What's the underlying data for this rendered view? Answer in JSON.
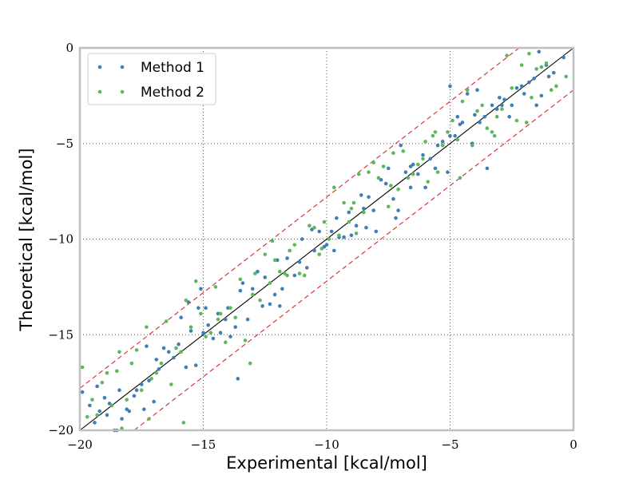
{
  "chart_data": {
    "type": "scatter",
    "xlabel": "Experimental [kcal/mol]",
    "ylabel": "Theoretical [kcal/mol]",
    "xlim": [
      -20,
      0
    ],
    "ylim": [
      -20,
      0
    ],
    "xticks": [
      -20,
      -15,
      -10,
      -5,
      0
    ],
    "yticks": [
      -20,
      -15,
      -10,
      -5,
      0
    ],
    "xtick_labels": [
      "−20",
      "−15",
      "−10",
      "−5",
      "0"
    ],
    "ytick_labels": [
      "−20",
      "−15",
      "−10",
      "−5",
      "0"
    ],
    "grid": true,
    "legend_position": "top-left",
    "colors": {
      "method1": "#3f7fb5",
      "method2": "#5cb85c",
      "identity_line": "#000000",
      "band_lines": "#d62728"
    },
    "reference_lines": {
      "identity": {
        "x": [
          -20,
          0
        ],
        "y": [
          -20,
          0
        ]
      },
      "upper_band": {
        "x": [
          -20,
          -2.2
        ],
        "y": [
          -17.8,
          0
        ]
      },
      "lower_band": {
        "x": [
          -17.8,
          0
        ],
        "y": [
          -20,
          -2.2
        ]
      }
    },
    "series": [
      {
        "name": "Method 1",
        "x": [
          -19.9,
          -19.6,
          -19.4,
          -19.3,
          -19.2,
          -19.0,
          -18.9,
          -18.8,
          -18.6,
          -18.4,
          -18.3,
          -18.1,
          -18.0,
          -17.8,
          -17.7,
          -17.5,
          -17.4,
          -17.3,
          -17.2,
          -17.0,
          -16.8,
          -16.6,
          -16.4,
          -16.2,
          -16.0,
          -15.9,
          -15.7,
          -15.6,
          -15.5,
          -15.3,
          -15.2,
          -15.0,
          -14.9,
          -14.8,
          -14.6,
          -14.4,
          -14.3,
          -14.1,
          -14.0,
          -13.9,
          -13.7,
          -13.5,
          -13.4,
          -13.2,
          -13.0,
          -12.8,
          -12.6,
          -12.5,
          -12.3,
          -12.1,
          -12.0,
          -11.8,
          -11.6,
          -11.5,
          -11.3,
          -11.1,
          -11.0,
          -10.8,
          -10.6,
          -10.5,
          -10.3,
          -10.1,
          -10.0,
          -9.8,
          -9.6,
          -9.5,
          -9.3,
          -9.1,
          -9.0,
          -8.8,
          -8.6,
          -8.5,
          -8.3,
          -8.1,
          -8.0,
          -7.8,
          -7.6,
          -7.5,
          -7.3,
          -7.1,
          -7.0,
          -6.8,
          -6.6,
          -6.5,
          -6.3,
          -6.1,
          -6.0,
          -5.8,
          -5.6,
          -5.5,
          -5.3,
          -5.1,
          -5.0,
          -4.8,
          -4.6,
          -4.5,
          -4.3,
          -4.1,
          -4.0,
          -3.8,
          -3.6,
          -3.5,
          -3.3,
          -3.1,
          -3.0,
          -2.8,
          -2.6,
          -2.5,
          -2.3,
          -2.1,
          -2.0,
          -1.8,
          -1.6,
          -1.5,
          -1.3,
          -1.1,
          -1.0,
          -0.8,
          -0.4,
          -5.0,
          -4.7,
          -3.9,
          -2.9,
          -1.4,
          -6.6,
          -7.2,
          -8.4,
          -9.7,
          -11.9,
          -13.6,
          -15.1,
          -16.9,
          -18.5
        ],
        "y": [
          -18.0,
          -18.7,
          -19.6,
          -17.7,
          -19.0,
          -18.3,
          -19.2,
          -18.6,
          -20.0,
          -17.9,
          -19.4,
          -18.9,
          -19.0,
          -18.2,
          -17.9,
          -17.6,
          -18.9,
          -15.6,
          -17.4,
          -18.5,
          -16.8,
          -15.7,
          -15.9,
          -16.2,
          -15.5,
          -14.1,
          -16.7,
          -13.3,
          -14.8,
          -16.6,
          -13.6,
          -14.9,
          -13.6,
          -14.5,
          -15.2,
          -13.9,
          -14.9,
          -14.2,
          -13.6,
          -15.1,
          -14.6,
          -12.7,
          -12.3,
          -14.2,
          -12.6,
          -11.7,
          -13.5,
          -12.0,
          -13.4,
          -12.9,
          -11.1,
          -12.6,
          -11.0,
          -10.6,
          -11.9,
          -11.2,
          -10.0,
          -11.5,
          -9.5,
          -10.6,
          -9.6,
          -10.4,
          -10.3,
          -9.6,
          -8.9,
          -9.9,
          -9.9,
          -8.6,
          -9.8,
          -9.3,
          -7.7,
          -8.4,
          -7.8,
          -8.5,
          -9.6,
          -6.9,
          -7.1,
          -6.3,
          -7.9,
          -8.5,
          -5.1,
          -6.5,
          -6.2,
          -6.1,
          -6.6,
          -5.6,
          -7.3,
          -5.8,
          -6.3,
          -5.1,
          -4.9,
          -6.5,
          -4.6,
          -4.6,
          -4.0,
          -3.9,
          -2.4,
          -5.0,
          -3.5,
          -3.9,
          -3.6,
          -6.3,
          -3.0,
          -3.2,
          -2.6,
          -2.7,
          -3.6,
          -3.0,
          -2.1,
          -2.0,
          -2.4,
          -1.8,
          -1.6,
          -3.0,
          -2.5,
          -0.9,
          -1.5,
          -1.3,
          -0.5,
          -2.0,
          -3.6,
          -2.2,
          -3.0,
          -0.2,
          -7.3,
          -8.9,
          -9.4,
          -10.6,
          -13.5,
          -17.3,
          -12.6,
          -16.3,
          -20.0
        ]
      },
      {
        "name": "Method 2",
        "x": [
          -19.9,
          -19.7,
          -19.5,
          -19.3,
          -19.1,
          -18.9,
          -18.7,
          -18.5,
          -18.3,
          -18.1,
          -17.9,
          -17.7,
          -17.5,
          -17.3,
          -17.1,
          -16.9,
          -16.7,
          -16.5,
          -16.3,
          -16.1,
          -15.9,
          -15.7,
          -15.5,
          -15.3,
          -15.1,
          -14.9,
          -14.7,
          -14.5,
          -14.3,
          -14.1,
          -13.9,
          -13.7,
          -13.5,
          -13.3,
          -13.1,
          -12.9,
          -12.7,
          -12.5,
          -12.3,
          -12.1,
          -11.9,
          -11.7,
          -11.5,
          -11.3,
          -11.1,
          -10.9,
          -10.7,
          -10.5,
          -10.3,
          -10.1,
          -9.9,
          -9.7,
          -9.5,
          -9.3,
          -9.1,
          -8.9,
          -8.7,
          -8.5,
          -8.3,
          -8.1,
          -7.9,
          -7.7,
          -7.5,
          -7.3,
          -7.1,
          -6.9,
          -6.7,
          -6.5,
          -6.3,
          -6.1,
          -5.9,
          -5.7,
          -5.5,
          -5.3,
          -5.1,
          -4.9,
          -4.7,
          -4.5,
          -4.3,
          -4.1,
          -3.9,
          -3.7,
          -3.5,
          -3.3,
          -3.1,
          -2.9,
          -2.7,
          -2.5,
          -2.3,
          -2.1,
          -1.9,
          -1.7,
          -1.5,
          -1.3,
          -1.1,
          -0.9,
          -0.7,
          -0.3,
          -18.4,
          -17.2,
          -15.8,
          -14.4,
          -13.0,
          -11.6,
          -10.2,
          -8.8,
          -7.4,
          -6.0,
          -4.6,
          -3.2,
          -1.8,
          -12.2,
          -9.0,
          -5.6
        ],
        "y": [
          -16.7,
          -19.3,
          -18.4,
          -19.2,
          -17.5,
          -17.0,
          -18.7,
          -16.9,
          -19.9,
          -18.4,
          -16.5,
          -15.8,
          -17.9,
          -14.6,
          -17.3,
          -17.0,
          -16.5,
          -14.3,
          -17.6,
          -15.7,
          -15.9,
          -13.2,
          -14.6,
          -12.2,
          -13.9,
          -15.1,
          -14.9,
          -12.5,
          -13.9,
          -15.4,
          -13.6,
          -14.1,
          -12.1,
          -15.3,
          -16.5,
          -11.8,
          -13.2,
          -10.8,
          -12.3,
          -11.1,
          -11.7,
          -11.8,
          -10.6,
          -10.3,
          -11.8,
          -11.9,
          -9.3,
          -9.4,
          -10.8,
          -9.1,
          -10.0,
          -7.3,
          -9.8,
          -8.1,
          -9.1,
          -8.1,
          -6.6,
          -8.6,
          -6.5,
          -6.0,
          -6.8,
          -6.2,
          -8.3,
          -5.5,
          -7.4,
          -5.4,
          -6.8,
          -6.6,
          -6.1,
          -5.8,
          -7.0,
          -4.6,
          -6.5,
          -5.1,
          -4.4,
          -3.8,
          -4.8,
          -2.8,
          -2.2,
          -5.1,
          -3.3,
          -3.0,
          -4.2,
          -4.4,
          -3.6,
          -3.2,
          -0.4,
          -2.1,
          -3.8,
          -0.9,
          -3.9,
          -2.6,
          -1.1,
          -1.0,
          -0.8,
          -2.2,
          -2.0,
          -1.5,
          -15.9,
          -19.4,
          -19.6,
          -14.2,
          -12.9,
          -11.9,
          -10.5,
          -9.7,
          -7.2,
          -4.9,
          -6.8,
          -4.6,
          -0.3,
          -10.1,
          -8.4,
          -4.4
        ]
      }
    ]
  }
}
